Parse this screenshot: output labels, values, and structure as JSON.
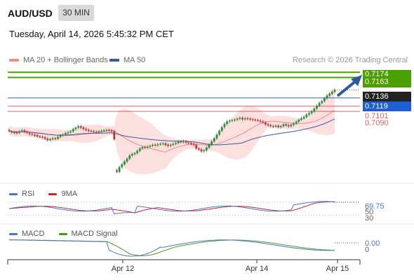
{
  "header": {
    "symbol": "AUD/USD",
    "timeframe": "30 MIN",
    "timestamp": "Tuesday, April 14, 2026 5:45:32 PM CET"
  },
  "legend": {
    "items": [
      {
        "label": "MA 20 + Bollinger Bands",
        "color": "#f08a84"
      },
      {
        "label": "MA 50",
        "color": "#335c9e"
      }
    ],
    "credit": "Research © 2026 Trading Central"
  },
  "colors": {
    "up": "#2e8b3d",
    "down": "#c0303c",
    "target": "#4aa000",
    "pivot": "#1f5fd6",
    "resistance": "#e06060",
    "bollinger_fill": "#fbdada",
    "ma20": "#f08a84",
    "ma50": "#335c9e",
    "last": "#222222",
    "arrow": "#2c5aa0"
  },
  "chart_data": [
    {
      "type": "candlestick",
      "pane": "price",
      "y_min": 0.6935,
      "y_max": 0.7185,
      "series_start_index": 0,
      "candles_ohlc_description": "30-minute AUD/USD candles, Apr 11 evening to Apr 15 morning",
      "closes": [
        0.7048,
        0.7046,
        0.7044,
        0.7043,
        0.7047,
        0.7049,
        0.7046,
        0.7044,
        0.7041,
        0.704,
        0.7038,
        0.7036,
        0.7035,
        0.7034,
        0.7031,
        0.7028,
        0.703,
        0.7032,
        0.7031,
        0.7035,
        0.7038,
        0.704,
        0.7043,
        0.7045,
        0.7047,
        0.7052,
        0.7055,
        0.7058,
        0.7055,
        0.7052,
        0.705,
        0.7048,
        0.7047,
        0.7046,
        0.7045,
        0.7047,
        0.7048,
        0.7049,
        0.705,
        0.7049,
        0.7047,
        0.703,
        0.696,
        0.697,
        0.6976,
        0.6982,
        0.6988,
        0.6995,
        0.6998,
        0.7,
        0.7005,
        0.701,
        0.7013,
        0.7012,
        0.7014,
        0.7016,
        0.7018,
        0.7017,
        0.7019,
        0.702,
        0.7021,
        0.7018,
        0.7016,
        0.7018,
        0.702,
        0.7022,
        0.7025,
        0.7024,
        0.7026,
        0.7023,
        0.7022,
        0.702,
        0.7018,
        0.701,
        0.7008,
        0.7004,
        0.7006,
        0.7012,
        0.7018,
        0.7025,
        0.7032,
        0.704,
        0.7048,
        0.7056,
        0.7063,
        0.7068,
        0.707,
        0.7071,
        0.7072,
        0.7074,
        0.7076,
        0.7073,
        0.7075,
        0.7074,
        0.7073,
        0.7072,
        0.7071,
        0.707,
        0.7068,
        0.7066,
        0.7062,
        0.706,
        0.7058,
        0.7057,
        0.7059,
        0.7056,
        0.7058,
        0.7062,
        0.706,
        0.7058,
        0.7061,
        0.7064,
        0.7068,
        0.7072,
        0.7075,
        0.7078,
        0.7083,
        0.7086,
        0.709,
        0.7096,
        0.7102,
        0.7108,
        0.7112,
        0.7118,
        0.7124,
        0.7128,
        0.7132,
        0.7136
      ],
      "opens_offset": [
        0.0002,
        -0.0001,
        0.0001,
        0.0002,
        -0.0003,
        -0.0001,
        0.0003,
        0.0002,
        0.0002,
        0.0001,
        0.0002,
        0.0003,
        0.0001,
        0.0001,
        0.0003,
        0.0003,
        -0.0002,
        -0.0002,
        0.0001,
        -0.0004,
        -0.0003,
        -0.0002,
        -0.0003,
        -0.0002,
        -0.0002,
        -0.0005,
        -0.0003,
        -0.0003,
        0.0003,
        0.0003,
        0.0002,
        0.0002,
        0.0001,
        0.0001,
        0.0001,
        -0.0002,
        -0.0001,
        -0.0001,
        -0.0001,
        0.0001,
        0.0002,
        0.0017,
        0.0003,
        -0.001,
        -0.0006,
        -0.0006,
        -0.0006,
        -0.0007,
        -0.0003,
        -0.0002,
        -0.0005,
        -0.0005,
        -0.0003,
        0.0001,
        -0.0002,
        -0.0002,
        -0.0002,
        0.0001,
        -0.0002,
        -0.0001,
        -0.0001,
        0.0003,
        0.0002,
        -0.0002,
        -0.0002,
        -0.0002,
        -0.0003,
        0.0001,
        -0.0002,
        0.0003,
        0.0001,
        0.0002,
        0.0002,
        0.0008,
        0.0002,
        0.0004,
        -0.0002,
        -0.0006,
        -0.0006,
        -0.0007,
        -0.0007,
        -0.0008,
        -0.0008,
        -0.0008,
        -0.0007,
        -0.0005,
        -0.0002,
        -0.0001,
        -0.0001,
        -0.0002,
        -0.0002,
        0.0003,
        -0.0002,
        0.0001,
        0.0001,
        0.0001,
        0.0001,
        0.0001,
        0.0002,
        0.0002,
        0.0004,
        0.0002,
        0.0002,
        0.0001,
        -0.0002,
        0.0003,
        -0.0002,
        -0.0004,
        0.0002,
        0.0002,
        -0.0003,
        -0.0003,
        -0.0004,
        -0.0004,
        -0.0003,
        -0.0003,
        -0.0005,
        -0.0003,
        -0.0004,
        -0.0006,
        -0.0006,
        -0.0006,
        -0.0004,
        -0.0006,
        -0.0006,
        -0.0004,
        -0.0004,
        -0.0004
      ],
      "horizontal_levels": [
        {
          "value": 0.7174,
          "label": "0.7174",
          "role": "target"
        },
        {
          "value": 0.7163,
          "label": "0.7163",
          "role": "target"
        },
        {
          "value": 0.7136,
          "label": "0.7136",
          "role": "last"
        },
        {
          "value": 0.7119,
          "label": "0.7119",
          "role": "pivot"
        },
        {
          "value": 0.7101,
          "label": "0.7101",
          "role": "resistance"
        },
        {
          "value": 0.709,
          "label": "0.7090",
          "role": "resistance"
        }
      ]
    },
    {
      "type": "line",
      "pane": "rsi",
      "series": [
        {
          "name": "RSI"
        },
        {
          "name": "9MA"
        }
      ],
      "y_ticks": [
        "69.75",
        "50",
        "30"
      ],
      "ylim": [
        20,
        80
      ]
    },
    {
      "type": "line",
      "pane": "macd",
      "series": [
        {
          "name": "MACD"
        },
        {
          "name": "MACD Signal"
        }
      ],
      "y_ticks": [
        "0.00",
        "0"
      ]
    },
    {
      "type": "axis",
      "x_ticks": [
        "Apr 12",
        "Apr 14",
        "Apr 15"
      ]
    }
  ],
  "rsi_legend": [
    {
      "label": "RSI",
      "color": "#4a74c9"
    },
    {
      "label": "9MA",
      "color": "#d42020"
    }
  ],
  "macd_legend": [
    {
      "label": "MACD",
      "color": "#4a74c9"
    },
    {
      "label": "MACD Signal",
      "color": "#4a9a20"
    }
  ]
}
